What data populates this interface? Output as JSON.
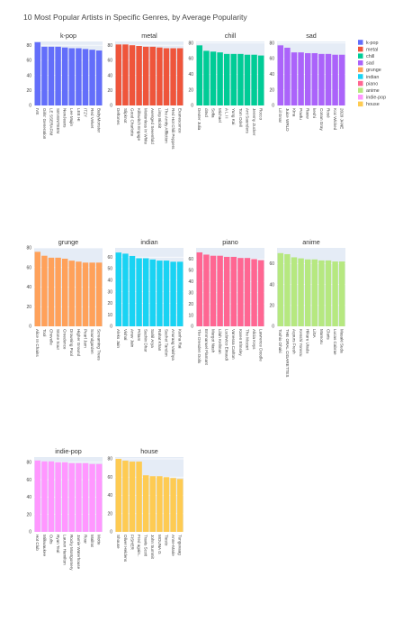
{
  "title": "10 Most Popular Artists in Specific Genres, by Average Popularity",
  "chart_data": {
    "type": "bar",
    "title": "10 Most Popular Artists in Specific Genres, by Average Popularity",
    "subplots": [
      {
        "name": "k-pop",
        "color": "#636efa",
        "ylim": [
          0,
          85
        ],
        "ticks": [
          0,
          20,
          40,
          60,
          80
        ],
        "categories": [
          "IVE",
          "Girls' Generation",
          "LE SSERAFIM",
          "SEVENTEEN",
          "NewJeans",
          "Lee Mujin",
          "LEE HI",
          "ITZY",
          "Red Velvet",
          "BabyMonster"
        ],
        "values": [
          84,
          78,
          78,
          78,
          77,
          76,
          76,
          75,
          74,
          73
        ]
      },
      {
        "name": "metal",
        "color": "#ef553b",
        "ylim": [
          0,
          85
        ],
        "ticks": [
          0,
          20,
          40,
          60,
          80
        ],
        "categories": [
          "Deftones",
          "Slipknot",
          "Good Charlotte",
          "Killswitch Engage",
          "Motionless In White",
          "Avenged Sevenfold",
          "Limp Bizkit",
          "The Amity Affliction",
          "Red Hot Chili Peppers",
          "Evanescence"
        ],
        "values": [
          81,
          81,
          80,
          79,
          78,
          78,
          77,
          76,
          76,
          76
        ]
      },
      {
        "name": "chill",
        "color": "#00cc96",
        "ylim": [
          0,
          82
        ],
        "ticks": [
          0,
          20,
          40,
          60,
          80
        ],
        "categories": [
          "Dexter Julia",
          "d4vd",
          "Sofia",
          "Michael",
          "A L I I",
          "Yung Kai",
          "Tom Odell",
          "Ant Saunders",
          "Jeremy Zucker",
          "Rocco"
        ],
        "values": [
          77,
          70,
          69,
          68,
          66,
          66,
          66,
          65,
          65,
          64
        ]
      },
      {
        "name": "sad",
        "color": "#ab63fa",
        "ylim": [
          0,
          82
        ],
        "ticks": [
          0,
          20,
          40,
          60,
          80
        ],
        "categories": [
          "Lil Gnar",
          "Juice WRLD",
          "Kina",
          "Powfu",
          "Rauw",
          "keshi",
          "Conan Gray",
          "Rosé",
          "Koz Wicked",
          "2020 JANE"
        ],
        "values": [
          77,
          74,
          68,
          68,
          67,
          67,
          66,
          66,
          65,
          65
        ]
      },
      {
        "name": "grunge",
        "color": "#ffa15a",
        "ylim": [
          0,
          80
        ],
        "ticks": [
          0,
          20,
          40,
          60,
          80
        ],
        "categories": [
          "Alice In Chains",
          "Tool",
          "Chevelle",
          "Stone Sour",
          "Creedence",
          "Drowning Pool",
          "Higher Ground",
          "Pearl Jam",
          "Soundgarden",
          "Screaming Trees"
        ],
        "values": [
          76,
          72,
          70,
          70,
          69,
          67,
          66,
          65,
          65,
          65
        ]
      },
      {
        "name": "indian",
        "color": "#19d3f3",
        "ylim": [
          0,
          68
        ],
        "ticks": [
          0,
          10,
          20,
          30,
          40,
          50,
          60
        ],
        "categories": [
          "Aleks Jain",
          "Vishal",
          "Anuv Jain",
          "Pritam",
          "Sachin Dhar",
          "Sahil Arya",
          "Rahat Khan",
          "Sachet Tandon",
          "Anuraag Vaishya",
          "Kanha Rai"
        ],
        "values": [
          64,
          63,
          61,
          59,
          59,
          58,
          57,
          57,
          56,
          56
        ]
      },
      {
        "name": "piano",
        "color": "#ff6692",
        "ylim": [
          0,
          70
        ],
        "ticks": [
          0,
          10,
          20,
          30,
          40,
          50,
          60
        ],
        "categories": [
          "The Dresden Dolls",
          "Emmanuel Flamant",
          "Margot Nash",
          "Lilah Kellman",
          "Ludovico Einaudi",
          "Vanessa Carlton",
          "Karen Elmsley",
          "The Mozart",
          "Alicia Keys",
          "Lawrence Doodle"
        ],
        "values": [
          66,
          64,
          63,
          63,
          62,
          62,
          61,
          61,
          60,
          59
        ]
      },
      {
        "name": "anime",
        "color": "#b6e880",
        "ylim": [
          0,
          75
        ],
        "ticks": [
          0,
          20,
          40,
          60
        ],
        "categories": [
          "Toshio Ohaki",
          "THE ORAL CIGARETTES",
          "Aqours Fresh",
          "Kenshi Yonezu",
          "Hikaru Utada",
          "LiSA",
          "Mamoru",
          "Claris",
          "Lucas Cabrae",
          "Masaki Suda"
        ],
        "values": [
          70,
          69,
          66,
          65,
          64,
          64,
          63,
          63,
          62,
          62
        ]
      },
      {
        "name": "indie-pop",
        "color": "#ff97ff",
        "ylim": [
          0,
          86
        ],
        "ticks": [
          0,
          20,
          40,
          60,
          80
        ],
        "categories": [
          "Hot Club",
          "Milkwaukee",
          "Cults",
          "Ryan Teal",
          "Lauren Hamilton",
          "Rocky Montgomery",
          "Jamie Waterhouse",
          "Roar",
          "Mallrat",
          "Motte"
        ],
        "values": [
          82,
          81,
          81,
          80,
          80,
          79,
          79,
          79,
          78,
          78
        ]
      },
      {
        "name": "house",
        "color": "#fecb52",
        "ylim": [
          0,
          82
        ],
        "ticks": [
          0,
          20,
          40,
          60,
          80
        ],
        "categories": [
          "Shouse",
          "Oliver Heldens",
          "FISHER",
          "Fred again..",
          "Travis Scott",
          "John Summit",
          "MOUNA G",
          "Tiesto",
          "Anne-Marie",
          "Tungevaag"
        ],
        "values": [
          80,
          78,
          77,
          77,
          62,
          61,
          61,
          60,
          59,
          58
        ]
      }
    ],
    "legend": {
      "placement": "top-right",
      "entries": [
        "k-pop",
        "metal",
        "chill",
        "sad",
        "grunge",
        "indian",
        "piano",
        "anime",
        "indie-pop",
        "house"
      ]
    },
    "grid": true
  }
}
